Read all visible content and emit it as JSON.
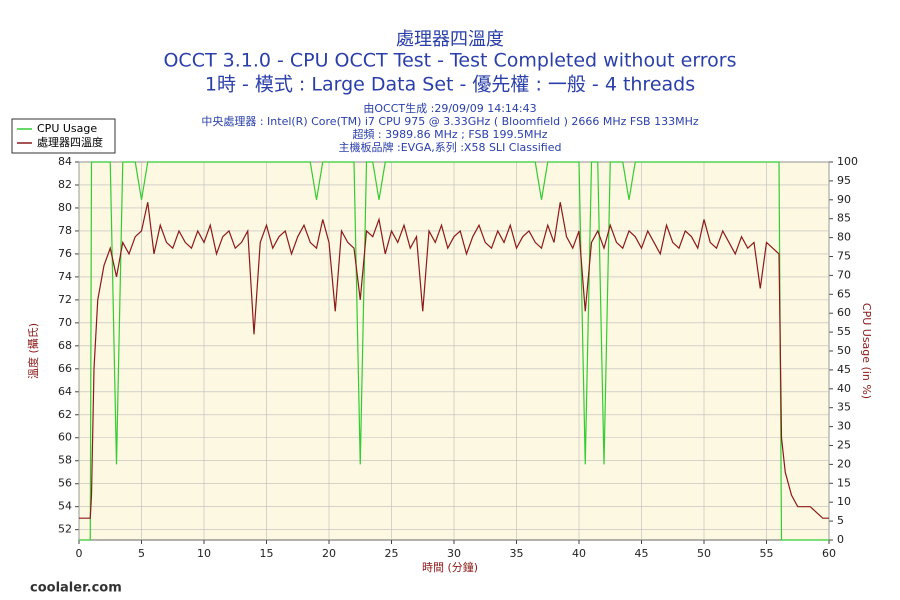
{
  "chart_data": {
    "type": "line",
    "title": "處理器四溫度",
    "subtitle": "OCCT 3.1.0 - CPU OCCT Test - Test Completed without errors",
    "subtitle2": "1時 - 模式 : Large Data Set - 優先權 : 一般 - 4 threads",
    "info": [
      "由OCCT生成 :29/09/09 14:14:43",
      "中央處理器 : Intel(R) Core(TM) i7 CPU 975 @ 3.33GHz ( Bloomfield ) 2666 MHz FSB 133MHz",
      "超頻 : 3989.86 MHz ; FSB 199.5MHz",
      "主機板品牌 :EVGA,系列 :X58 SLI Classified"
    ],
    "xlabel": "時間 (分鐘)",
    "ylabel": "溫度 (攝氏)",
    "y2label": "CPU Usage (in %)",
    "watermark": "coolaler.com",
    "xlim": [
      0,
      60
    ],
    "xticks": [
      0,
      5,
      10,
      15,
      20,
      25,
      30,
      35,
      40,
      45,
      50,
      55,
      60
    ],
    "ylim": [
      51.1,
      84
    ],
    "yticks": [
      52,
      54,
      56,
      58,
      60,
      62,
      64,
      66,
      68,
      70,
      72,
      74,
      76,
      78,
      80,
      82,
      84
    ],
    "y2lim": [
      0,
      100
    ],
    "y2ticks": [
      0,
      5,
      10,
      15,
      20,
      25,
      30,
      35,
      40,
      45,
      50,
      55,
      60,
      65,
      70,
      75,
      80,
      85,
      90,
      95,
      100
    ],
    "grid": true,
    "legend": "top-left",
    "x": [
      0,
      0.5,
      0.9,
      1,
      1.2,
      1.5,
      2,
      2.5,
      3,
      3.5,
      4,
      4.5,
      5,
      5.5,
      6,
      6.5,
      7,
      7.5,
      8,
      8.5,
      9,
      9.5,
      10,
      10.5,
      11,
      11.5,
      12,
      12.5,
      13,
      13.5,
      14,
      14.5,
      15,
      15.5,
      16,
      16.5,
      17,
      17.5,
      18,
      18.5,
      19,
      19.5,
      20,
      20.5,
      21,
      21.5,
      22,
      22.5,
      23,
      23.5,
      24,
      24.5,
      25,
      25.5,
      26,
      26.5,
      27,
      27.5,
      28,
      28.5,
      29,
      29.5,
      30,
      30.5,
      31,
      31.5,
      32,
      32.5,
      33,
      33.5,
      34,
      34.5,
      35,
      35.5,
      36,
      36.5,
      37,
      37.5,
      38,
      38.5,
      39,
      39.5,
      40,
      40.5,
      41,
      41.5,
      42,
      42.5,
      43,
      43.5,
      44,
      44.5,
      45,
      45.5,
      46,
      46.5,
      47,
      47.5,
      48,
      48.5,
      49,
      49.5,
      50,
      50.5,
      51,
      51.5,
      52,
      52.5,
      53,
      53.5,
      54,
      54.5,
      55,
      55.5,
      56,
      56.2,
      56.5,
      57,
      57.5,
      58,
      58.5,
      59,
      59.5,
      60
    ],
    "series": [
      {
        "name": "CPU Usage",
        "color": "#33cc33",
        "axis": "y2",
        "values": [
          0,
          0,
          0,
          100,
          100,
          100,
          100,
          100,
          20,
          100,
          100,
          100,
          90,
          100,
          100,
          100,
          100,
          100,
          100,
          100,
          100,
          100,
          100,
          100,
          100,
          100,
          100,
          100,
          100,
          100,
          100,
          100,
          100,
          100,
          100,
          100,
          100,
          100,
          100,
          100,
          90,
          100,
          100,
          100,
          100,
          100,
          100,
          20,
          100,
          100,
          90,
          100,
          100,
          100,
          100,
          100,
          100,
          100,
          100,
          100,
          100,
          100,
          100,
          100,
          100,
          100,
          100,
          100,
          100,
          100,
          100,
          100,
          100,
          100,
          100,
          100,
          90,
          100,
          100,
          100,
          100,
          100,
          100,
          20,
          100,
          100,
          20,
          100,
          100,
          100,
          90,
          100,
          100,
          100,
          100,
          100,
          100,
          100,
          100,
          100,
          100,
          100,
          100,
          100,
          100,
          100,
          100,
          100,
          100,
          100,
          100,
          100,
          100,
          100,
          100,
          0,
          0,
          0,
          0,
          0,
          0,
          0,
          0,
          0
        ]
      },
      {
        "name": "處理器四溫度",
        "color": "#8b1a1a",
        "values": [
          53,
          53,
          53,
          55,
          66,
          72,
          75,
          76.5,
          74,
          77,
          76,
          77.5,
          78,
          80.5,
          76,
          78.5,
          77,
          76.5,
          78,
          77,
          76.5,
          78,
          77,
          78.5,
          76,
          77.5,
          78,
          76.5,
          77,
          78,
          69,
          77,
          78.5,
          76.5,
          77.5,
          78,
          76,
          77.5,
          78.5,
          77,
          76.5,
          79,
          77,
          71,
          78,
          77,
          76.5,
          72,
          78,
          77.5,
          79,
          76,
          78,
          77,
          78.5,
          76.5,
          77.5,
          71,
          78,
          77,
          78.5,
          76.5,
          77.5,
          78,
          76,
          77.5,
          78.5,
          77,
          76.5,
          78,
          77,
          78.5,
          76.5,
          77.5,
          78,
          77,
          76.5,
          78.5,
          77,
          80.5,
          77.5,
          76.5,
          78,
          71,
          77,
          78,
          76.5,
          78.5,
          77,
          76.5,
          78,
          77.5,
          76.5,
          78,
          77,
          76,
          78.5,
          77,
          76.5,
          78,
          77.5,
          76.5,
          79,
          77,
          76.5,
          78,
          77,
          76,
          77.5,
          76.5,
          77,
          73,
          77,
          76.5,
          76,
          60,
          57,
          55,
          54,
          54,
          54,
          53.5,
          53,
          53
        ]
      }
    ]
  }
}
